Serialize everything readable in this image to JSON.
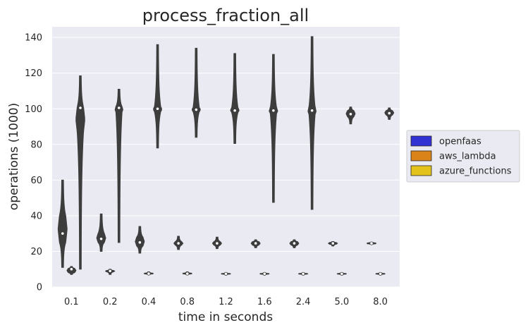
{
  "chart_data": {
    "type": "violin",
    "title": "process_fraction_all",
    "xlabel": "time in seconds",
    "ylabel": "operations (1000)",
    "ylim": [
      0,
      146
    ],
    "yticks": [
      0,
      20,
      40,
      60,
      80,
      100,
      120,
      140
    ],
    "categories": [
      "0.1",
      "0.2",
      "0.4",
      "0.8",
      "1.2",
      "1.6",
      "2.4",
      "5.0",
      "8.0"
    ],
    "grid": true,
    "legend_position": "right",
    "colors": {
      "background": "#eaeaf2",
      "grid": "#ffffff",
      "violin_stroke": "#3d3d3d",
      "violin_fill": "#3d3d3d",
      "median_point": "#ffffff"
    },
    "series": [
      {
        "name": "openfaas",
        "color": "#3131d4",
        "distributions": [
          {
            "min": 11,
            "q1": 25,
            "median": 30,
            "q3": 40,
            "max": 60
          },
          {
            "min": 20,
            "q1": 25,
            "median": 27,
            "q3": 30,
            "max": 41
          },
          {
            "min": 19,
            "q1": 23,
            "median": 25,
            "q3": 28,
            "max": 34
          },
          {
            "min": 21,
            "q1": 23.5,
            "median": 24.5,
            "q3": 25.5,
            "max": 28.5
          },
          {
            "min": 21.5,
            "q1": 23.5,
            "median": 24.5,
            "q3": 25.5,
            "max": 28
          },
          {
            "min": 22,
            "q1": 23.5,
            "median": 24.5,
            "q3": 25.5,
            "max": 26.5
          },
          {
            "min": 22,
            "q1": 23.5,
            "median": 24.5,
            "q3": 25.5,
            "max": 26.5
          },
          {
            "min": 23,
            "q1": 24,
            "median": 24.5,
            "q3": 25,
            "max": 25.5
          },
          {
            "min": 24,
            "q1": 24.2,
            "median": 24.5,
            "q3": 24.8,
            "max": 25
          }
        ]
      },
      {
        "name": "aws_lambda",
        "color": "#d9831a",
        "distributions": [
          {
            "min": 7,
            "q1": 8,
            "median": 10,
            "q3": 10.5,
            "max": 11.5
          },
          {
            "min": 7,
            "q1": 8.5,
            "median": 9,
            "q3": 9.3,
            "max": 10
          },
          {
            "min": 7,
            "q1": 7.3,
            "median": 7.5,
            "q3": 7.8,
            "max": 8.5
          },
          {
            "min": 7,
            "q1": 7.3,
            "median": 7.5,
            "q3": 7.8,
            "max": 8.5
          },
          {
            "min": 7,
            "q1": 7.2,
            "median": 7.4,
            "q3": 7.6,
            "max": 8
          },
          {
            "min": 7,
            "q1": 7.2,
            "median": 7.4,
            "q3": 7.6,
            "max": 8
          },
          {
            "min": 7,
            "q1": 7.2,
            "median": 7.4,
            "q3": 7.6,
            "max": 8
          },
          {
            "min": 7,
            "q1": 7.2,
            "median": 7.4,
            "q3": 7.6,
            "max": 8
          },
          {
            "min": 7,
            "q1": 7.2,
            "median": 7.4,
            "q3": 7.6,
            "max": 8
          }
        ]
      },
      {
        "name": "azure_functions",
        "color": "#e3c21b",
        "distributions": [
          {
            "min": 10,
            "q1": 87,
            "median": 100.5,
            "q3": 101,
            "max": 118.5
          },
          {
            "min": 25,
            "q1": 99,
            "median": 100.5,
            "q3": 101,
            "max": 111
          },
          {
            "min": 78,
            "q1": 98.5,
            "median": 100,
            "q3": 101,
            "max": 136
          },
          {
            "min": 84,
            "q1": 98.5,
            "median": 99.5,
            "q3": 100.5,
            "max": 134
          },
          {
            "min": 80.5,
            "q1": 98,
            "median": 99,
            "q3": 100.5,
            "max": 131
          },
          {
            "min": 47.5,
            "q1": 97.5,
            "median": 99,
            "q3": 100.5,
            "max": 130.5
          },
          {
            "min": 43.5,
            "q1": 97.5,
            "median": 99,
            "q3": 100.5,
            "max": 140.5
          },
          {
            "min": 91.5,
            "q1": 95.5,
            "median": 97,
            "q3": 99,
            "max": 101
          },
          {
            "min": 94,
            "q1": 96.5,
            "median": 97.5,
            "q3": 99,
            "max": 100.5
          }
        ]
      }
    ]
  }
}
